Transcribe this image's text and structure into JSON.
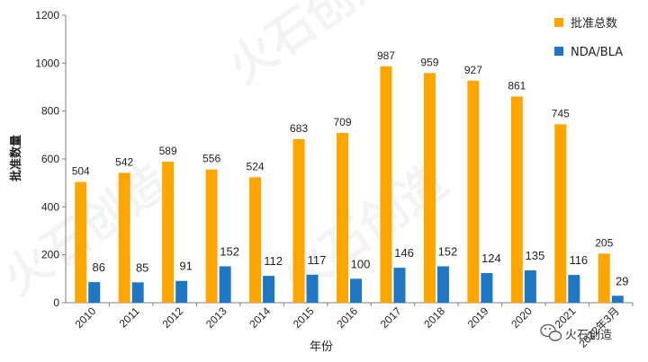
{
  "chart_data": {
    "type": "bar",
    "categories": [
      "2010",
      "2011",
      "2012",
      "2013",
      "2014",
      "2015",
      "2016",
      "2017",
      "2018",
      "2019",
      "2020",
      "2021",
      "2022年3月"
    ],
    "series": [
      {
        "name": "批准总数",
        "color": "#FFA500",
        "values": [
          504,
          542,
          589,
          556,
          524,
          683,
          709,
          987,
          959,
          927,
          861,
          745,
          205
        ]
      },
      {
        "name": "NDA/BLA",
        "color": "#1F77C4",
        "values": [
          86,
          85,
          91,
          152,
          112,
          117,
          100,
          146,
          152,
          124,
          135,
          116,
          29
        ]
      }
    ],
    "ylabel": "批准数量",
    "xlabel": "年份",
    "ylim": [
      0,
      1200
    ],
    "yticks": [
      0,
      200,
      400,
      600,
      800,
      1000,
      1200
    ],
    "legend_position": "top-right",
    "grid": false
  },
  "watermark": {
    "text": "火石创造",
    "icon": "wechat-icon"
  }
}
